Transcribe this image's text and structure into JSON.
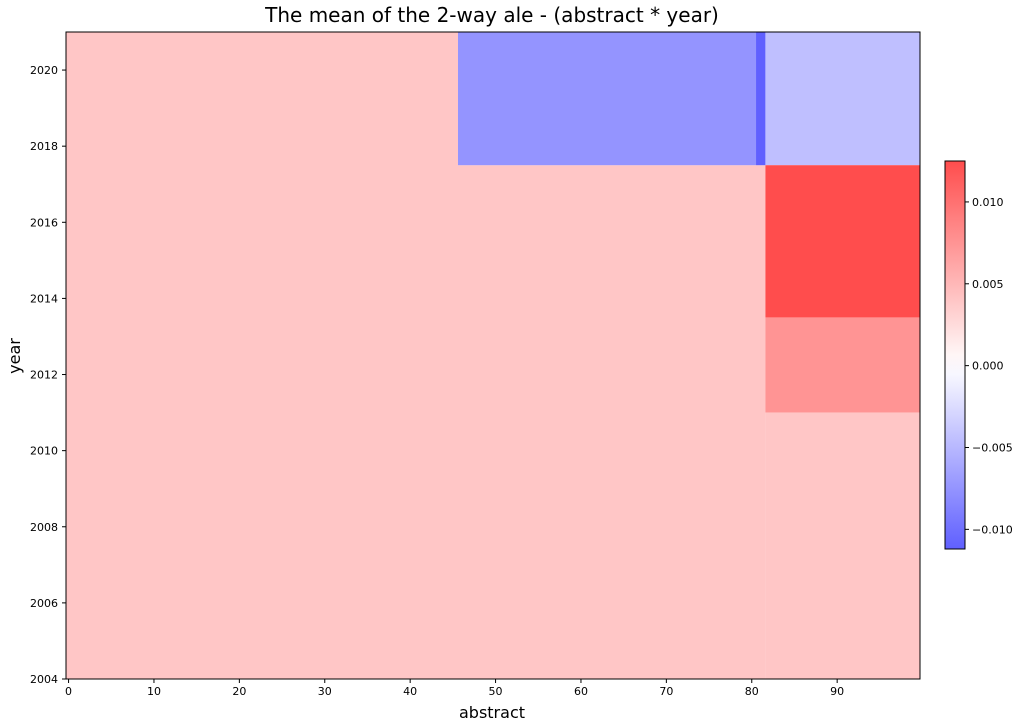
{
  "chart_data": {
    "type": "heatmap",
    "title": "The mean of the 2-way ale - (abstract * year)",
    "xlabel": "abstract",
    "ylabel": "year",
    "xlim": [
      -0.3,
      99.7
    ],
    "ylim": [
      2004,
      2021
    ],
    "xticks": [
      "0",
      "10",
      "20",
      "30",
      "40",
      "50",
      "60",
      "70",
      "80",
      "90"
    ],
    "yticks": [
      "2004",
      "2006",
      "2008",
      "2010",
      "2012",
      "2014",
      "2016",
      "2018",
      "2020"
    ],
    "colorbar": {
      "min": -0.0112,
      "max": 0.0125,
      "ticks": [
        "0.010",
        "0.005",
        "0.000",
        "−0.005",
        "−0.010"
      ],
      "tick_values": [
        0.01,
        0.005,
        0.0,
        -0.005,
        -0.01
      ],
      "colormap": "bwr",
      "low_color": "#4d4dff",
      "mid_color": "#ffffff",
      "high_color": "#ff4d4d"
    },
    "cells": [
      {
        "x0": -0.3,
        "x1": 45.6,
        "y0": 2004,
        "y1": 2021,
        "value": 0.004
      },
      {
        "x0": 45.6,
        "x1": 81.6,
        "y0": 2004,
        "y1": 2017.5,
        "value": 0.004
      },
      {
        "x0": 45.6,
        "x1": 80.5,
        "y0": 2017.5,
        "y1": 2021,
        "value": -0.0075
      },
      {
        "x0": 80.5,
        "x1": 81.6,
        "y0": 2017.5,
        "y1": 2021,
        "value": -0.0112
      },
      {
        "x0": 81.6,
        "x1": 99.7,
        "y0": 2017.5,
        "y1": 2021,
        "value": -0.0045
      },
      {
        "x0": 81.6,
        "x1": 99.7,
        "y0": 2013.5,
        "y1": 2017.5,
        "value": 0.0125
      },
      {
        "x0": 81.6,
        "x1": 99.7,
        "y0": 2011,
        "y1": 2013.5,
        "value": 0.0075
      },
      {
        "x0": 81.6,
        "x1": 99.7,
        "y0": 2004,
        "y1": 2011,
        "value": 0.004
      }
    ]
  }
}
